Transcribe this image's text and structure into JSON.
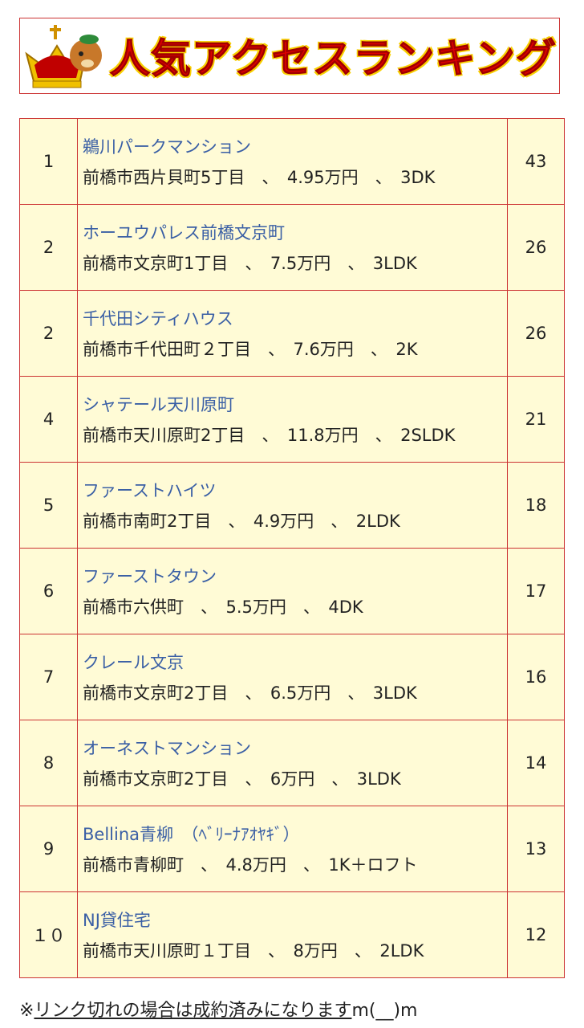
{
  "header": {
    "title": "人気アクセスランキング"
  },
  "table": {
    "rows": [
      {
        "rank": "1",
        "name": "鵜川パークマンション",
        "details": "前橋市西片貝町5丁目　、　4.95万円　、　3DK",
        "count": 43
      },
      {
        "rank": "2",
        "name": "ホーユウパレス前橋文京町",
        "details": "前橋市文京町1丁目　、　7.5万円　、　3LDK",
        "count": 26
      },
      {
        "rank": "2",
        "name": "千代田シティハウス",
        "details": "前橋市千代田町２丁目　、　7.6万円　、　2K",
        "count": 26
      },
      {
        "rank": "4",
        "name": "シャテール天川原町",
        "details": "前橋市天川原町2丁目　、　11.8万円　、　2SLDK",
        "count": 21
      },
      {
        "rank": "5",
        "name": "ファーストハイツ",
        "details": "前橋市南町2丁目　、　4.9万円　、　2LDK",
        "count": 18
      },
      {
        "rank": "6",
        "name": "ファーストタウン",
        "details": "前橋市六供町　、　5.5万円　、　4DK",
        "count": 17
      },
      {
        "rank": "7",
        "name": "クレール文京",
        "details": "前橋市文京町2丁目　、　6.5万円　、　3LDK",
        "count": 16
      },
      {
        "rank": "8",
        "name": "オーネストマンション",
        "details": "前橋市文京町2丁目　、　6万円　、　3LDK",
        "count": 14
      },
      {
        "rank": "9",
        "name": "Bellina青柳　（ﾍﾞﾘｰﾅｱｵﾔｷﾞ）",
        "details": "前橋市青柳町　、　4.8万円　、　1K＋ロフト",
        "count": 13
      },
      {
        "rank": "１０",
        "name": "NJ貸住宅",
        "details": "前橋市天川原町１丁目　、　8万円　、　2LDK",
        "count": 12
      }
    ]
  },
  "footer": {
    "prefix": "※",
    "note": "リンク切れの場合は成約済みになります",
    "suffix": "m(__)m"
  }
}
